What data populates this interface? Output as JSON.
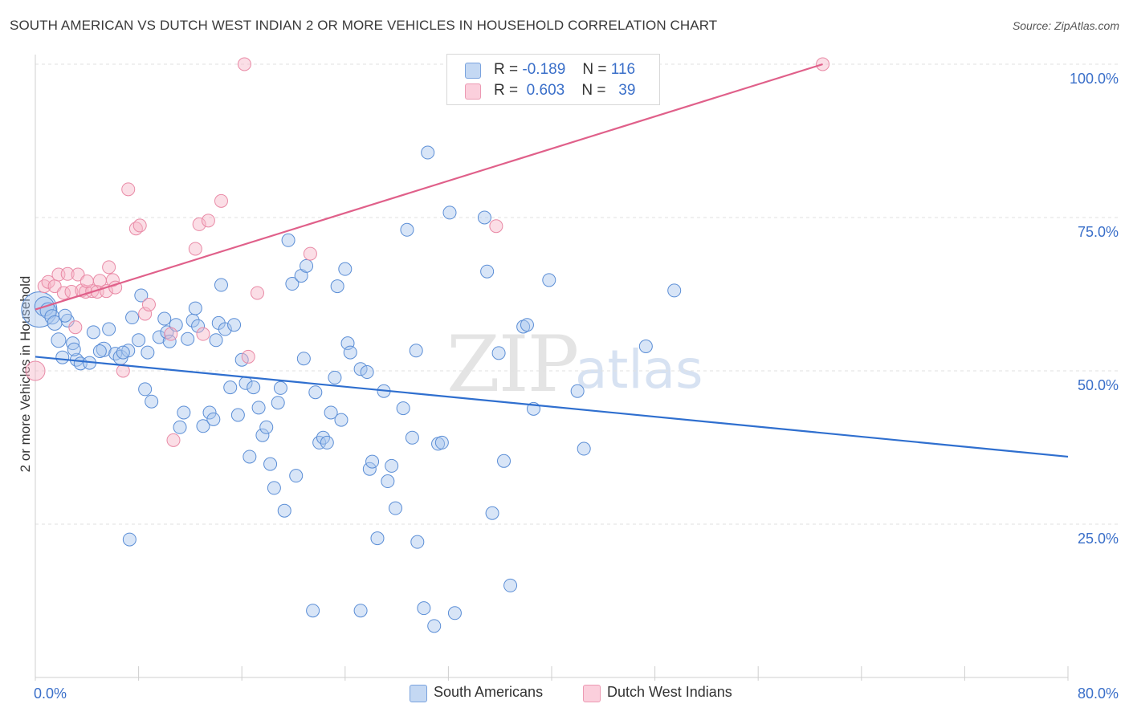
{
  "title": "SOUTH AMERICAN VS DUTCH WEST INDIAN 2 OR MORE VEHICLES IN HOUSEHOLD CORRELATION CHART",
  "source": "Source: ZipAtlas.com",
  "watermark": {
    "zip": "ZIP",
    "atlas": "atlas"
  },
  "legend_top": {
    "rows": [
      {
        "r_label": "R =",
        "r_value": "-0.189",
        "n_label": "N =",
        "n_value": "116",
        "color": "#a9c6ee"
      },
      {
        "r_label": "R =",
        "r_value": "0.603",
        "n_label": "N =",
        "n_value": "39",
        "color": "#f7b6c8"
      }
    ]
  },
  "chart_data": {
    "type": "scatter",
    "title": "SOUTH AMERICAN VS DUTCH WEST INDIAN 2 OR MORE VEHICLES IN HOUSEHOLD CORRELATION CHART",
    "xlabel": "",
    "ylabel": "2 or more Vehicles in Household",
    "xlim": [
      0,
      80
    ],
    "ylim": [
      0,
      100
    ],
    "x_tick_labels": [
      "0.0%",
      "80.0%"
    ],
    "y_ticks": [
      25,
      50,
      75,
      100
    ],
    "y_tick_labels": [
      "25.0%",
      "50.0%",
      "75.0%",
      "100.0%"
    ],
    "grid": true,
    "legend_placement": "bottom",
    "series": [
      {
        "name": "South Americans",
        "color": "#a9c6ee",
        "edge": "#5b8ed6",
        "trend": {
          "x0": 0,
          "y0": 52.3,
          "x1": 80,
          "y1": 36.0,
          "color": "#2f6fcf"
        },
        "points": [
          [
            0.3,
            60.0,
            22
          ],
          [
            0.7,
            60.5,
            12
          ],
          [
            1.0,
            59.8,
            10
          ],
          [
            1.3,
            58.8,
            9
          ],
          [
            1.5,
            57.8,
            9
          ],
          [
            1.8,
            55.0,
            9
          ],
          [
            2.1,
            52.2,
            8
          ],
          [
            2.5,
            58.2,
            8
          ],
          [
            2.9,
            54.5,
            8
          ],
          [
            3.2,
            51.8,
            8
          ],
          [
            3.5,
            51.2,
            8
          ],
          [
            4.2,
            51.3,
            8
          ],
          [
            4.5,
            56.3,
            8
          ],
          [
            5.3,
            53.5,
            9
          ],
          [
            5.7,
            56.8,
            8
          ],
          [
            6.2,
            52.8,
            8
          ],
          [
            6.6,
            52.2,
            9
          ],
          [
            7.2,
            53.3,
            8
          ],
          [
            7.5,
            58.7,
            8
          ],
          [
            8.0,
            55.0,
            8
          ],
          [
            8.2,
            62.3,
            8
          ],
          [
            8.5,
            47.0,
            8
          ],
          [
            8.7,
            53.0,
            8
          ],
          [
            9.0,
            45.0,
            8
          ],
          [
            9.6,
            55.5,
            8
          ],
          [
            10.0,
            58.5,
            8
          ],
          [
            10.2,
            56.3,
            8
          ],
          [
            10.4,
            54.8,
            8
          ],
          [
            10.9,
            57.5,
            8
          ],
          [
            11.2,
            40.8,
            8
          ],
          [
            11.5,
            43.2,
            8
          ],
          [
            11.8,
            55.2,
            8
          ],
          [
            12.2,
            58.2,
            8
          ],
          [
            12.4,
            60.2,
            8
          ],
          [
            12.6,
            57.3,
            8
          ],
          [
            13.0,
            41.0,
            8
          ],
          [
            13.5,
            43.2,
            8
          ],
          [
            13.8,
            42.1,
            8
          ],
          [
            14.2,
            57.8,
            8
          ],
          [
            14.4,
            64.0,
            8
          ],
          [
            14.7,
            56.8,
            8
          ],
          [
            15.1,
            47.3,
            8
          ],
          [
            15.4,
            57.5,
            8
          ],
          [
            15.7,
            42.8,
            8
          ],
          [
            16.0,
            51.8,
            8
          ],
          [
            16.3,
            48.0,
            8
          ],
          [
            16.6,
            36.0,
            8
          ],
          [
            16.9,
            47.3,
            8
          ],
          [
            17.3,
            44.0,
            8
          ],
          [
            17.6,
            39.5,
            8
          ],
          [
            17.9,
            40.8,
            8
          ],
          [
            18.2,
            34.8,
            8
          ],
          [
            18.5,
            30.9,
            8
          ],
          [
            18.8,
            44.8,
            8
          ],
          [
            19.0,
            47.2,
            8
          ],
          [
            19.3,
            27.2,
            8
          ],
          [
            19.6,
            71.3,
            8
          ],
          [
            19.9,
            64.2,
            8
          ],
          [
            20.2,
            32.9,
            8
          ],
          [
            20.6,
            65.5,
            8
          ],
          [
            20.8,
            52.0,
            8
          ],
          [
            21.0,
            67.1,
            8
          ],
          [
            21.7,
            46.5,
            8
          ],
          [
            22.0,
            38.3,
            8
          ],
          [
            22.3,
            39.1,
            8
          ],
          [
            22.6,
            38.3,
            8
          ],
          [
            22.9,
            43.2,
            8
          ],
          [
            23.2,
            48.9,
            8
          ],
          [
            23.4,
            63.8,
            8
          ],
          [
            23.7,
            42.0,
            8
          ],
          [
            24.0,
            66.6,
            8
          ],
          [
            24.2,
            54.5,
            8
          ],
          [
            24.4,
            53.0,
            8
          ],
          [
            25.2,
            50.3,
            8
          ],
          [
            25.7,
            49.8,
            8
          ],
          [
            25.9,
            34.0,
            8
          ],
          [
            26.1,
            35.2,
            8
          ],
          [
            26.5,
            22.7,
            8
          ],
          [
            27.0,
            46.7,
            8
          ],
          [
            27.3,
            32.0,
            8
          ],
          [
            27.6,
            34.5,
            8
          ],
          [
            27.9,
            27.6,
            8
          ],
          [
            28.5,
            43.9,
            8
          ],
          [
            28.8,
            73.0,
            8
          ],
          [
            29.2,
            39.1,
            8
          ],
          [
            29.5,
            53.3,
            8
          ],
          [
            29.6,
            22.1,
            8
          ],
          [
            30.1,
            11.3,
            8
          ],
          [
            30.4,
            85.6,
            8
          ],
          [
            30.9,
            8.4,
            8
          ],
          [
            31.2,
            38.1,
            8
          ],
          [
            31.5,
            38.3,
            8
          ],
          [
            32.1,
            75.8,
            8
          ],
          [
            32.5,
            10.5,
            8
          ],
          [
            25.2,
            10.9,
            8
          ],
          [
            35.0,
            66.2,
            8
          ],
          [
            35.4,
            26.8,
            8
          ],
          [
            35.9,
            52.9,
            8
          ],
          [
            36.3,
            35.3,
            8
          ],
          [
            36.8,
            15.0,
            8
          ],
          [
            37.8,
            57.2,
            8
          ],
          [
            38.1,
            57.5,
            8
          ],
          [
            38.6,
            43.8,
            8
          ],
          [
            39.8,
            64.8,
            8
          ],
          [
            42.0,
            46.7,
            8
          ],
          [
            42.5,
            37.3,
            8
          ],
          [
            47.3,
            54.0,
            8
          ],
          [
            49.5,
            63.1,
            8
          ],
          [
            7.3,
            22.5,
            8
          ],
          [
            21.5,
            10.9,
            8
          ],
          [
            14.0,
            55.0,
            8
          ],
          [
            34.8,
            75.0,
            8
          ],
          [
            5.0,
            53.2,
            8
          ],
          [
            2.3,
            59.0,
            8
          ],
          [
            3.0,
            53.5,
            8
          ],
          [
            6.8,
            53.0,
            8
          ]
        ]
      },
      {
        "name": "Dutch West Indians",
        "color": "#f7b6c8",
        "edge": "#e98aa6",
        "trend": {
          "x0": 0,
          "y0": 60.0,
          "x1": 61.0,
          "y1": 100.0,
          "color": "#e0608a"
        },
        "points": [
          [
            0.0,
            50.0,
            12
          ],
          [
            0.7,
            63.8,
            8
          ],
          [
            1.0,
            64.5,
            8
          ],
          [
            1.5,
            63.8,
            8
          ],
          [
            1.8,
            65.7,
            8
          ],
          [
            2.2,
            62.7,
            8
          ],
          [
            2.5,
            65.8,
            8
          ],
          [
            2.8,
            62.9,
            8
          ],
          [
            3.1,
            57.1,
            8
          ],
          [
            3.3,
            65.7,
            8
          ],
          [
            3.6,
            63.1,
            8
          ],
          [
            3.9,
            62.9,
            8
          ],
          [
            4.4,
            63.0,
            8
          ],
          [
            4.8,
            62.9,
            8
          ],
          [
            5.0,
            64.7,
            8
          ],
          [
            5.5,
            63.0,
            8
          ],
          [
            5.7,
            66.9,
            8
          ],
          [
            6.0,
            64.8,
            8
          ],
          [
            6.2,
            63.6,
            8
          ],
          [
            6.8,
            50.0,
            8
          ],
          [
            7.2,
            79.6,
            8
          ],
          [
            7.8,
            73.2,
            8
          ],
          [
            8.1,
            73.7,
            8
          ],
          [
            8.5,
            59.3,
            8
          ],
          [
            8.8,
            60.8,
            8
          ],
          [
            10.5,
            56.0,
            8
          ],
          [
            10.7,
            38.7,
            8
          ],
          [
            12.4,
            69.9,
            8
          ],
          [
            12.7,
            73.9,
            8
          ],
          [
            13.0,
            56.0,
            8
          ],
          [
            13.4,
            74.5,
            8
          ],
          [
            14.4,
            77.7,
            8
          ],
          [
            16.2,
            100.0,
            8
          ],
          [
            16.5,
            52.3,
            8
          ],
          [
            17.2,
            62.7,
            8
          ],
          [
            21.3,
            69.1,
            8
          ],
          [
            35.7,
            73.6,
            8
          ],
          [
            61.0,
            100.0,
            8
          ],
          [
            4.0,
            64.6,
            8
          ]
        ]
      }
    ]
  }
}
